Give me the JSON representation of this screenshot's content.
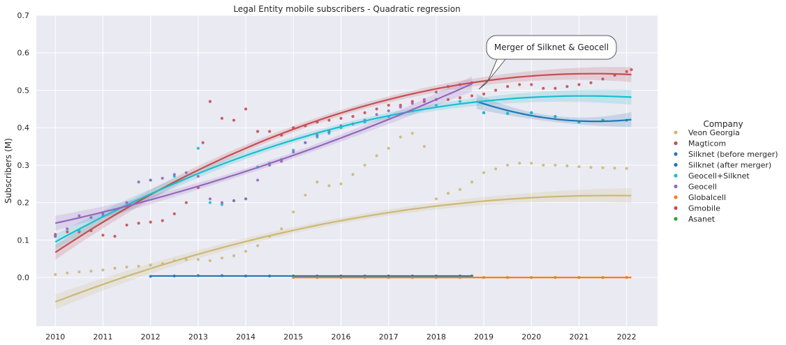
{
  "chart_data": {
    "type": "scatter",
    "title": "Legal Entity mobile subscribers - Quadratic regression",
    "xlabel": "",
    "ylabel": "Subscribers (M)",
    "xlim": [
      2009.6,
      2022.65
    ],
    "ylim": [
      -0.13,
      0.7
    ],
    "xticks": [
      "2010",
      "2011",
      "2012",
      "2013",
      "2014",
      "2015",
      "2016",
      "2017",
      "2018",
      "2019",
      "2020",
      "2021",
      "2022"
    ],
    "yticks": [
      "0.0",
      "0.1",
      "0.2",
      "0.3",
      "0.4",
      "0.5",
      "0.6",
      "0.7"
    ],
    "grid": true,
    "legend": {
      "title": "Company",
      "placement": "right",
      "entries": [
        {
          "name": "Veon Georgia",
          "color": "#ccb974"
        },
        {
          "name": "Magticom",
          "color": "#c44e52"
        },
        {
          "name": "Silknet (before merger)",
          "color": "#2878b5"
        },
        {
          "name": "Silknet (after merger)",
          "color": "#1f77b4"
        },
        {
          "name": "Geocell+Silknet",
          "color": "#17becf"
        },
        {
          "name": "Geocell",
          "color": "#9467bd"
        },
        {
          "name": "Globalcell",
          "color": "#ff7f0e"
        },
        {
          "name": "Gmobile",
          "color": "#c44e52"
        },
        {
          "name": "Asanet",
          "color": "#2ca02c"
        }
      ]
    },
    "annotation": {
      "text": "Merger of Silknet & Geocell",
      "x": 2018.8,
      "y": 0.505
    },
    "series": [
      {
        "name": "Veon Georgia",
        "color": "#ccb974",
        "points": [
          [
            2010,
            0.008
          ],
          [
            2010.25,
            0.012
          ],
          [
            2010.5,
            0.015
          ],
          [
            2010.75,
            0.017
          ],
          [
            2011,
            0.02
          ],
          [
            2011.25,
            0.025
          ],
          [
            2011.5,
            0.028
          ],
          [
            2011.75,
            0.03
          ],
          [
            2012,
            0.033
          ],
          [
            2012.25,
            0.037
          ],
          [
            2012.5,
            0.045
          ],
          [
            2012.75,
            0.048
          ],
          [
            2013,
            0.048
          ],
          [
            2013.25,
            0.045
          ],
          [
            2013.5,
            0.052
          ],
          [
            2013.75,
            0.058
          ],
          [
            2014,
            0.07
          ],
          [
            2014.25,
            0.085
          ],
          [
            2014.5,
            0.11
          ],
          [
            2014.75,
            0.13
          ],
          [
            2015,
            0.175
          ],
          [
            2015.25,
            0.22
          ],
          [
            2015.5,
            0.255
          ],
          [
            2015.75,
            0.245
          ],
          [
            2016,
            0.25
          ],
          [
            2016.25,
            0.275
          ],
          [
            2016.5,
            0.3
          ],
          [
            2016.75,
            0.325
          ],
          [
            2017,
            0.345
          ],
          [
            2017.25,
            0.375
          ],
          [
            2017.5,
            0.385
          ],
          [
            2017.75,
            0.35
          ],
          [
            2018,
            0.21
          ],
          [
            2018.25,
            0.225
          ],
          [
            2018.5,
            0.235
          ],
          [
            2018.75,
            0.255
          ],
          [
            2019,
            0.28
          ],
          [
            2019.25,
            0.29
          ],
          [
            2019.5,
            0.3
          ],
          [
            2019.75,
            0.305
          ],
          [
            2020,
            0.305
          ],
          [
            2020.25,
            0.3
          ],
          [
            2020.5,
            0.3
          ],
          [
            2020.75,
            0.298
          ],
          [
            2021,
            0.296
          ],
          [
            2021.25,
            0.294
          ],
          [
            2021.5,
            0.293
          ],
          [
            2021.75,
            0.292
          ],
          [
            2022,
            0.291
          ]
        ],
        "fit": {
          "x0": 2010,
          "x1": 2022.1,
          "a": -0.00208,
          "b": 0.0486,
          "c": -0.065
        }
      },
      {
        "name": "Magticom",
        "color": "#c44e52",
        "points": [
          [
            2010,
            0.115
          ],
          [
            2010.25,
            0.122
          ],
          [
            2010.5,
            0.122
          ],
          [
            2010.75,
            0.125
          ],
          [
            2011,
            0.113
          ],
          [
            2011.25,
            0.11
          ],
          [
            2011.5,
            0.14
          ],
          [
            2011.75,
            0.145
          ],
          [
            2012,
            0.148
          ],
          [
            2012.25,
            0.152
          ],
          [
            2012.5,
            0.17
          ],
          [
            2012.75,
            0.2
          ],
          [
            2013,
            0.24
          ],
          [
            2013.1,
            0.36
          ],
          [
            2013.25,
            0.47
          ],
          [
            2013.5,
            0.425
          ],
          [
            2013.75,
            0.42
          ],
          [
            2014,
            0.45
          ],
          [
            2014.25,
            0.39
          ],
          [
            2014.5,
            0.39
          ],
          [
            2014.75,
            0.38
          ],
          [
            2015,
            0.4
          ],
          [
            2015.25,
            0.405
          ],
          [
            2015.5,
            0.415
          ],
          [
            2015.75,
            0.42
          ],
          [
            2016,
            0.425
          ],
          [
            2016.25,
            0.43
          ],
          [
            2016.5,
            0.44
          ],
          [
            2016.75,
            0.45
          ],
          [
            2017,
            0.46
          ],
          [
            2017.25,
            0.46
          ],
          [
            2017.5,
            0.47
          ],
          [
            2017.75,
            0.47
          ],
          [
            2018,
            0.475
          ],
          [
            2018.25,
            0.475
          ],
          [
            2018.5,
            0.48
          ],
          [
            2018.75,
            0.485
          ],
          [
            2019,
            0.49
          ],
          [
            2019.25,
            0.5
          ],
          [
            2019.5,
            0.51
          ],
          [
            2019.75,
            0.515
          ],
          [
            2020,
            0.515
          ],
          [
            2020.25,
            0.505
          ],
          [
            2020.5,
            0.505
          ],
          [
            2020.75,
            0.51
          ],
          [
            2021,
            0.515
          ],
          [
            2021.25,
            0.52
          ],
          [
            2021.5,
            0.53
          ],
          [
            2021.75,
            0.54
          ],
          [
            2022,
            0.55
          ],
          [
            2022.1,
            0.555
          ]
        ],
        "fit": {
          "x0": 2010,
          "x1": 2022.1,
          "a": -0.00374,
          "b": 0.0845,
          "c": 0.067
        }
      },
      {
        "name": "Silknet (before merger)",
        "color": "#2878b5",
        "points": [
          [
            2012,
            0.003
          ],
          [
            2012.5,
            0.004
          ],
          [
            2013,
            0.005
          ],
          [
            2013.5,
            0.005
          ],
          [
            2014,
            0.004
          ],
          [
            2014.5,
            0.004
          ],
          [
            2015,
            0.004
          ],
          [
            2015.5,
            0.004
          ],
          [
            2016,
            0.004
          ],
          [
            2016.5,
            0.004
          ],
          [
            2017,
            0.004
          ],
          [
            2017.5,
            0.004
          ],
          [
            2018,
            0.004
          ],
          [
            2018.5,
            0.004
          ],
          [
            2018.75,
            0.004
          ]
        ],
        "fit": {
          "x0": 2012,
          "x1": 2018.75,
          "a": 0,
          "b": 0,
          "c": 0.004
        }
      },
      {
        "name": "Silknet (after merger)",
        "color": "#1f77b4",
        "points": [
          [
            2019,
            0.44
          ],
          [
            2019.5,
            0.438
          ],
          [
            2020,
            0.44
          ],
          [
            2020.5,
            0.43
          ],
          [
            2021,
            0.415
          ],
          [
            2021.5,
            0.42
          ],
          [
            2022,
            0.42
          ]
        ],
        "fit": {
          "x0": 2018.85,
          "x1": 2022.1,
          "a": 0.0085,
          "b": -0.0425,
          "c": 0.47
        }
      },
      {
        "name": "Geocell+Silknet",
        "color": "#17becf",
        "points": [
          [
            2010,
            0.11
          ],
          [
            2010.5,
            0.125
          ],
          [
            2011,
            0.165
          ],
          [
            2011.5,
            0.19
          ],
          [
            2012,
            0.26
          ],
          [
            2012.5,
            0.27
          ],
          [
            2013,
            0.345
          ],
          [
            2013.25,
            0.2
          ],
          [
            2013.5,
            0.195
          ],
          [
            2013.75,
            0.205
          ],
          [
            2014,
            0.21
          ],
          [
            2014.25,
            0.295
          ],
          [
            2014.5,
            0.305
          ],
          [
            2014.75,
            0.315
          ],
          [
            2015,
            0.34
          ],
          [
            2015.25,
            0.36
          ],
          [
            2015.5,
            0.375
          ],
          [
            2015.75,
            0.385
          ],
          [
            2016,
            0.4
          ],
          [
            2016.5,
            0.415
          ],
          [
            2017,
            0.43
          ],
          [
            2017.5,
            0.445
          ],
          [
            2018,
            0.46
          ],
          [
            2018.5,
            0.47
          ],
          [
            2019,
            0.44
          ],
          [
            2019.5,
            0.438
          ],
          [
            2020,
            0.44
          ],
          [
            2020.5,
            0.43
          ],
          [
            2021,
            0.415
          ],
          [
            2021.5,
            0.42
          ],
          [
            2022,
            0.42
          ]
        ],
        "fit": {
          "x0": 2010,
          "x1": 2022.1,
          "a": -0.00317,
          "b": 0.0703,
          "c": 0.095
        }
      },
      {
        "name": "Geocell",
        "color": "#9467bd",
        "points": [
          [
            2010,
            0.11
          ],
          [
            2010.25,
            0.13
          ],
          [
            2010.5,
            0.165
          ],
          [
            2010.75,
            0.16
          ],
          [
            2011,
            0.17
          ],
          [
            2011.25,
            0.18
          ],
          [
            2011.5,
            0.2
          ],
          [
            2011.75,
            0.255
          ],
          [
            2012,
            0.26
          ],
          [
            2012.25,
            0.265
          ],
          [
            2012.5,
            0.275
          ],
          [
            2012.75,
            0.28
          ],
          [
            2013,
            0.27
          ],
          [
            2013.25,
            0.21
          ],
          [
            2013.5,
            0.2
          ],
          [
            2013.75,
            0.205
          ],
          [
            2014,
            0.21
          ],
          [
            2014.25,
            0.26
          ],
          [
            2014.5,
            0.3
          ],
          [
            2014.75,
            0.31
          ],
          [
            2015,
            0.335
          ],
          [
            2015.25,
            0.36
          ],
          [
            2015.5,
            0.38
          ],
          [
            2015.75,
            0.39
          ],
          [
            2016,
            0.405
          ],
          [
            2016.25,
            0.41
          ],
          [
            2016.5,
            0.42
          ],
          [
            2016.75,
            0.435
          ],
          [
            2017,
            0.445
          ],
          [
            2017.25,
            0.455
          ],
          [
            2017.5,
            0.465
          ],
          [
            2017.75,
            0.475
          ],
          [
            2018,
            0.495
          ],
          [
            2018.25,
            0.51
          ],
          [
            2018.5,
            0.515
          ],
          [
            2018.75,
            0.52
          ]
        ],
        "fit": {
          "x0": 2010,
          "x1": 2018.75,
          "a": 0.00167,
          "b": 0.0279,
          "c": 0.145
        }
      },
      {
        "name": "Globalcell",
        "color": "#ff7f0e",
        "points": [
          [
            2015,
            0.0
          ],
          [
            2015.5,
            0.0
          ],
          [
            2016,
            0.0
          ],
          [
            2016.5,
            0.0
          ],
          [
            2017,
            0.0
          ],
          [
            2017.5,
            0.0
          ],
          [
            2018,
            0.0
          ],
          [
            2018.5,
            0.0
          ],
          [
            2019,
            0.0
          ],
          [
            2019.5,
            0.0
          ],
          [
            2020,
            0.0
          ],
          [
            2020.5,
            0.0
          ],
          [
            2021,
            0.0
          ],
          [
            2021.5,
            0.0
          ],
          [
            2022,
            0.0
          ]
        ],
        "fit": {
          "x0": 2015,
          "x1": 2022.1,
          "a": 0,
          "b": 0,
          "c": 0.0
        }
      },
      {
        "name": "Gmobile",
        "color": "#c44e52",
        "points": [],
        "fit": null
      },
      {
        "name": "Asanet",
        "color": "#2ca02c",
        "points": [],
        "fit": null
      }
    ]
  }
}
